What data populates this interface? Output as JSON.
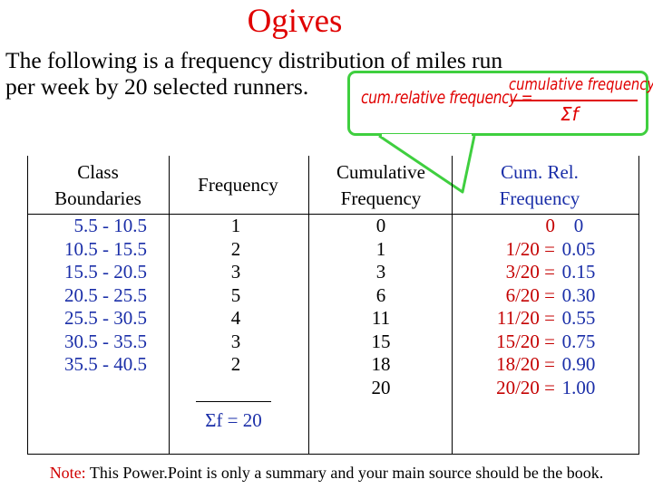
{
  "slide": {
    "title": "Ogives",
    "intro_line1": "The following is a frequency distribution of miles run",
    "intro_line2": "per week by 20 selected runners."
  },
  "callout": {
    "label": "cum.relative frequency =",
    "numerator": "cumulative frequency",
    "denominator": "Σf",
    "border_color": "#3fcf3f",
    "text_color": "#e00000"
  },
  "table": {
    "headers": {
      "class_line1": "Class",
      "class_line2": "Boundaries",
      "frequency": "Frequency",
      "cum_line1": "Cumulative",
      "cum_line2": "Frequency",
      "rel_line1": "Cum. Rel.",
      "rel_line2": "Frequency"
    },
    "class_boundaries": [
      "5.5 - 10.5",
      "10.5 - 15.5",
      "15.5 - 20.5",
      "20.5 - 25.5",
      "25.5 - 30.5",
      "30.5 - 35.5",
      "35.5 - 40.5"
    ],
    "frequency": [
      "1",
      "2",
      "3",
      "5",
      "4",
      "3",
      "2"
    ],
    "frequency_sum": "Σf = 20",
    "cumulative_frequency": [
      "0",
      "1",
      "3",
      "6",
      "11",
      "15",
      "18",
      "20"
    ],
    "cum_rel_fraction": [
      "0",
      "1/20 =",
      "3/20 =",
      "6/20 =",
      "11/20 =",
      "15/20 =",
      "18/20 =",
      "20/20 ="
    ],
    "cum_rel_value": [
      "0",
      "0.05",
      "0.15",
      "0.30",
      "0.55",
      "0.75",
      "0.90",
      "1.00"
    ]
  },
  "footer": {
    "note_label": "Note:",
    "note_text": " This Power.Point is only a summary and your main source should be the book."
  },
  "colors": {
    "title": "#e00000",
    "blue_values": "#1a2ea8",
    "red_values": "#c40000"
  }
}
